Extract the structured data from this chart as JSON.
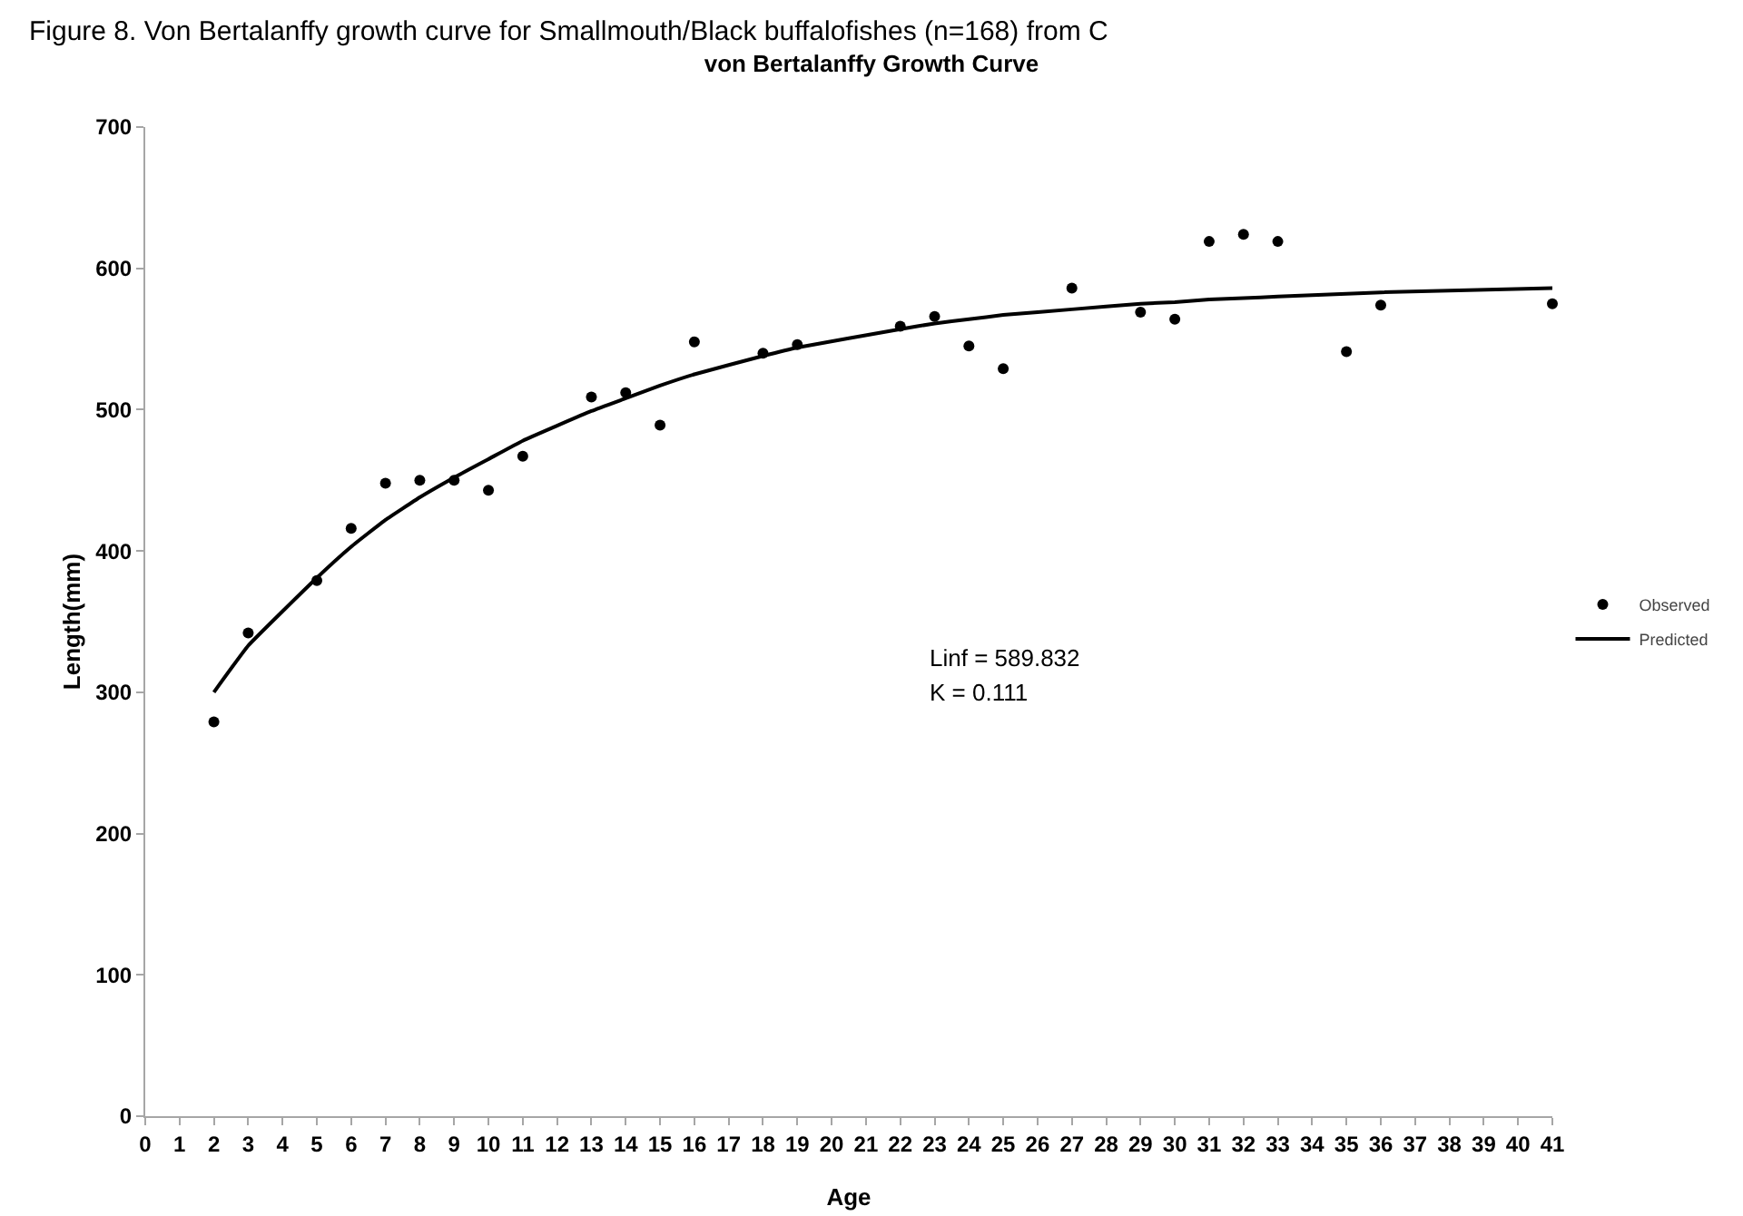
{
  "chart_data": {
    "type": "scatter",
    "title": "von Bertalanffy Growth Curve",
    "xlabel": "Age",
    "ylabel": "Length(mm)",
    "annotations": [
      "Figure 8. Von Bertalanffy growth curve for Smallmouth/Black buffalofishes (n=168) from C",
      "Linf = 589.832",
      "K = 0.111"
    ],
    "series": [
      {
        "name": "Observed",
        "color": "#000000",
        "marker": "circle",
        "x": [
          2,
          3,
          5,
          6,
          7,
          8,
          9,
          10,
          11,
          13,
          14,
          15,
          16,
          18,
          19,
          22,
          23,
          24,
          25,
          27,
          29,
          30,
          31,
          32,
          33,
          35,
          36,
          41
        ],
        "values": [
          279,
          342,
          379,
          416,
          448,
          450,
          450,
          443,
          467,
          509,
          512,
          489,
          548,
          540,
          546,
          559,
          566,
          545,
          529,
          586,
          569,
          564,
          619,
          624,
          619,
          541,
          574,
          575
        ]
      },
      {
        "name": "Predicted",
        "type": "line",
        "color": "#000000",
        "marker": "none",
        "line_style": "solid",
        "x": [
          2,
          3,
          5,
          6,
          7,
          8,
          9,
          10,
          11,
          13,
          14,
          15,
          16,
          18,
          19,
          22,
          23,
          24,
          25,
          27,
          29,
          30,
          31,
          32,
          33,
          35,
          36,
          41
        ],
        "values": [
          300,
          333,
          381,
          403,
          422,
          438,
          452,
          465,
          478,
          499,
          508,
          517,
          525,
          538,
          544,
          557,
          561,
          564,
          567,
          571,
          575,
          576,
          578,
          579,
          580,
          582,
          583,
          586
        ]
      }
    ],
    "xlim": [
      0,
      41
    ],
    "xticks": [
      0,
      1,
      2,
      3,
      4,
      5,
      6,
      7,
      8,
      9,
      10,
      11,
      12,
      13,
      14,
      15,
      16,
      17,
      18,
      19,
      20,
      21,
      22,
      23,
      24,
      25,
      26,
      27,
      28,
      29,
      30,
      31,
      32,
      33,
      34,
      35,
      36,
      37,
      38,
      39,
      40,
      41
    ],
    "ylim": [
      0,
      700
    ],
    "yticks": [
      0,
      100,
      200,
      300,
      400,
      500,
      600,
      700
    ],
    "grid": false,
    "legend": "right"
  }
}
